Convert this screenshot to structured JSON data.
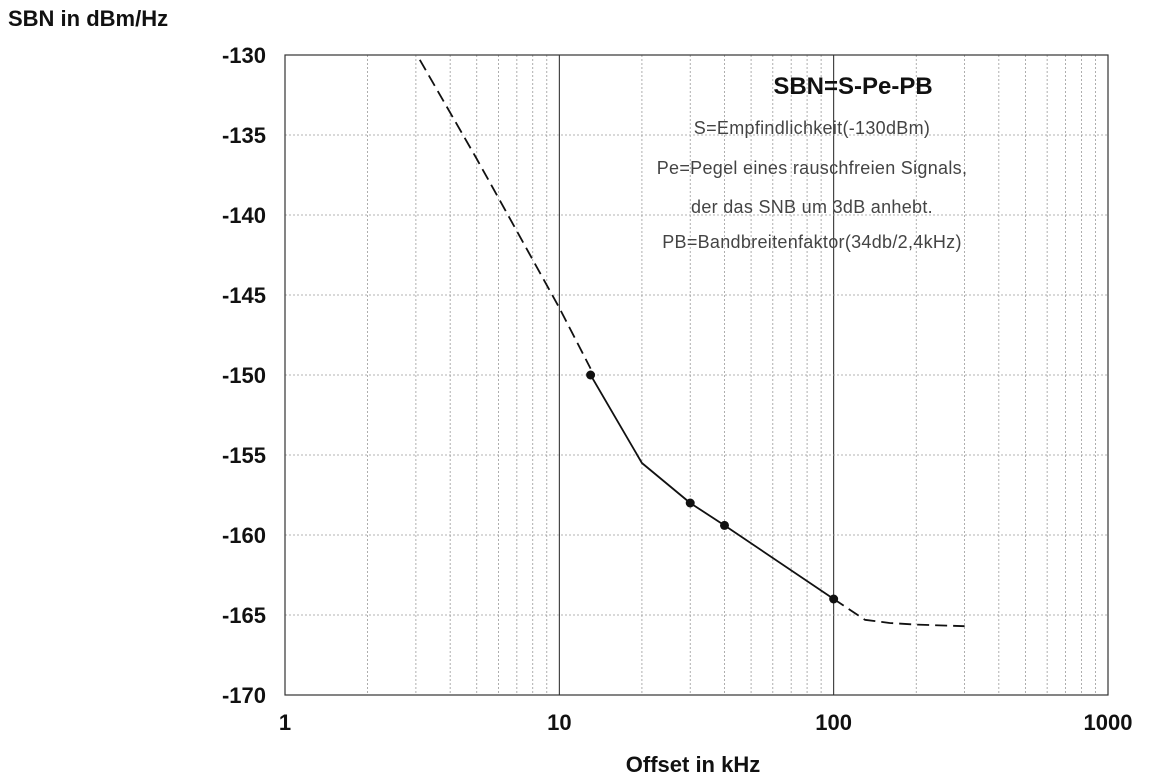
{
  "chart_data": {
    "type": "line",
    "ylabel": "SBN in dBm/Hz",
    "xlabel": "Offset in kHz",
    "x_scale": "log",
    "xlim": [
      1,
      1000
    ],
    "ylim": [
      -170,
      -130
    ],
    "x_ticks": [
      1,
      10,
      100,
      1000
    ],
    "x_tick_labels": [
      "1",
      "10",
      "100",
      "1000"
    ],
    "y_ticks": [
      -130,
      -135,
      -140,
      -145,
      -150,
      -155,
      -160,
      -165,
      -170
    ],
    "y_tick_labels": [
      "-130",
      "-135",
      "-140",
      "-145",
      "-150",
      "-155",
      "-160",
      "-165",
      "-170"
    ],
    "grid": true,
    "annotation": {
      "title": "SBN=S-Pe-PB",
      "lines": [
        "S=Empfindlichkeit(-130dBm)",
        "Pe=Pegel eines rauschfreien Signals,",
        "der das SNB um 3dB anhebt.",
        "PB=Bandbreitenfaktor(34db/2,4kHz)"
      ]
    },
    "series": [
      {
        "style": "dashed",
        "x": [
          3.1,
          5,
          7,
          10,
          13
        ],
        "y": [
          -130.3,
          -136.5,
          -141.0,
          -145.8,
          -149.6
        ]
      },
      {
        "style": "solid",
        "x": [
          13,
          20,
          30,
          40,
          100
        ],
        "y": [
          -150.0,
          -155.5,
          -158.0,
          -159.4,
          -164.0
        ]
      },
      {
        "style": "dashed",
        "x": [
          100,
          130,
          160,
          200,
          300
        ],
        "y": [
          -164.0,
          -165.3,
          -165.5,
          -165.6,
          -165.7
        ]
      }
    ],
    "markers": {
      "x": [
        13,
        30,
        40,
        100
      ],
      "y": [
        -150.0,
        -158.0,
        -159.4,
        -164.0
      ]
    }
  }
}
